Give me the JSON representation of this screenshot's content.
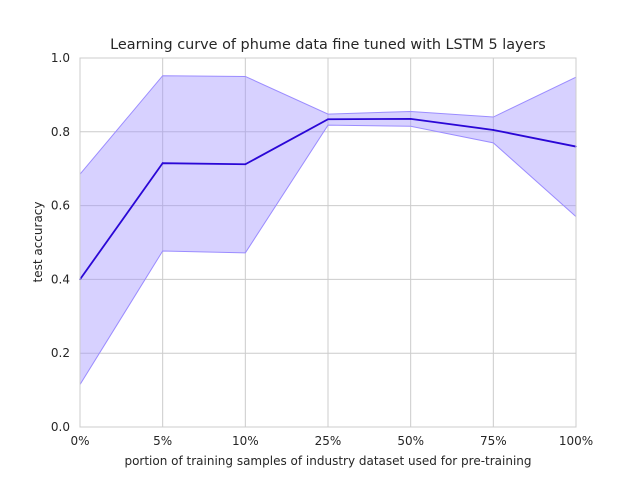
{
  "chart_data": {
    "type": "line",
    "title": "Learning curve of phume data fine tuned with LSTM 5 layers",
    "xlabel": "portion of training samples of industry dataset used for pre-training",
    "ylabel": "test accuracy",
    "categories": [
      "0%",
      "5%",
      "10%",
      "25%",
      "50%",
      "75%",
      "100%"
    ],
    "series": [
      {
        "values": [
          0.4,
          0.715,
          0.712,
          0.834,
          0.835,
          0.805,
          0.76
        ],
        "lower": [
          0.115,
          0.477,
          0.472,
          0.818,
          0.815,
          0.77,
          0.57
        ],
        "upper": [
          0.685,
          0.952,
          0.95,
          0.848,
          0.855,
          0.84,
          0.948
        ],
        "color": "#2a07d6",
        "band_color": "#9b8cff"
      }
    ],
    "ylim": [
      0.0,
      1.0
    ],
    "yticks": [
      "0.0",
      "0.2",
      "0.4",
      "0.6",
      "0.8",
      "1.0"
    ],
    "grid": true
  }
}
